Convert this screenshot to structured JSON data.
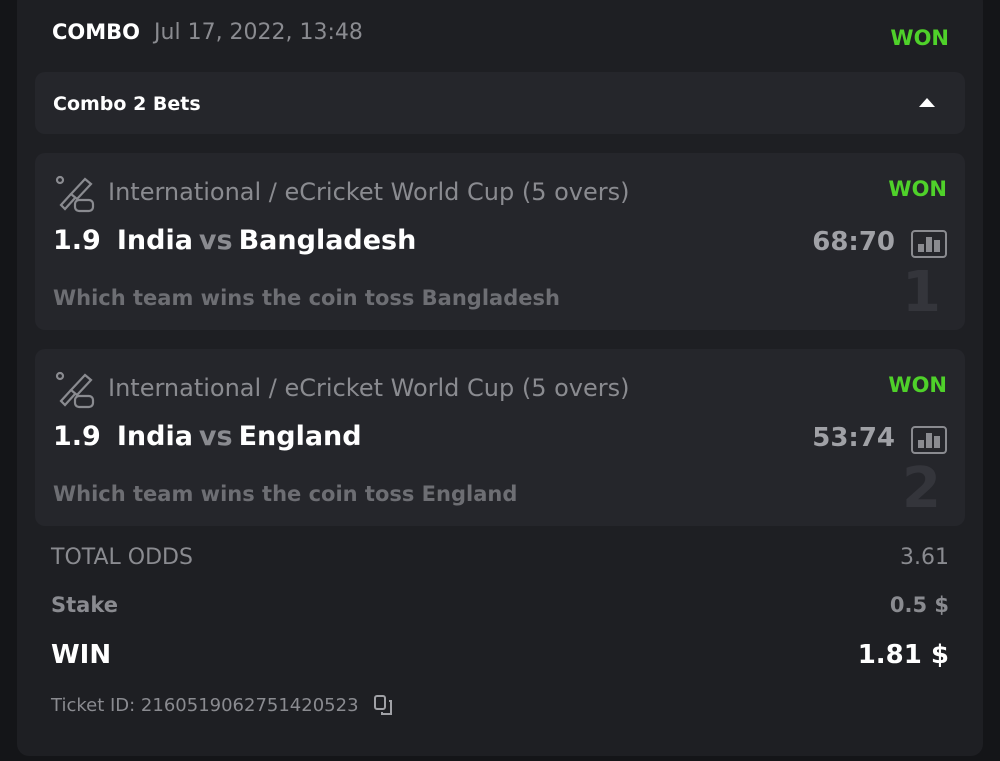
{
  "header": {
    "type": "COMBO",
    "date": "Jul 17, 2022, 13:48",
    "status": "WON"
  },
  "combo": {
    "label": "Combo 2 Bets"
  },
  "legs": [
    {
      "index": "1",
      "league": "International / eCricket World Cup (5 overs)",
      "status": "WON",
      "odds": "1.9",
      "home": "India",
      "vs": "vs",
      "away": "Bangladesh",
      "score": "68:70",
      "pick": "Which team wins the coin toss Bangladesh"
    },
    {
      "index": "2",
      "league": "International / eCricket World Cup (5 overs)",
      "status": "WON",
      "odds": "1.9",
      "home": "India",
      "vs": "vs",
      "away": "England",
      "score": "53:74",
      "pick": "Which team wins the coin toss England"
    }
  ],
  "summary": {
    "total_odds_label": "TOTAL ODDS",
    "total_odds": "3.61",
    "stake_label": "Stake",
    "stake": "0.5 $",
    "win_label": "WIN",
    "win": "1.81 $"
  },
  "ticket": {
    "label": "Ticket ID: 2160519062751420523"
  },
  "colors": {
    "won": "#4fd12a",
    "background": "#1e1f23",
    "panel": "#25262b"
  }
}
